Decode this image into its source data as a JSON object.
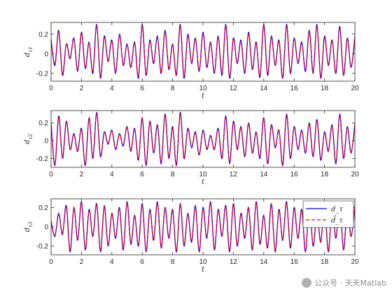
{
  "chart_data": [
    {
      "type": "line",
      "ylabel": "d_{τ1}",
      "xlabel": "t",
      "xlim": [
        0,
        20
      ],
      "ylim": [
        -0.28,
        0.32
      ],
      "xticks": [
        0,
        2,
        4,
        6,
        8,
        10,
        12,
        14,
        16,
        18,
        20
      ],
      "yticks": [
        -0.2,
        0,
        0.2
      ],
      "ytick_labels": [
        "-0.2",
        "0",
        "0.2"
      ],
      "x": [
        0,
        0.25,
        0.5,
        0.75,
        1,
        1.25,
        1.5,
        1.75,
        2,
        2.25,
        2.5,
        2.75,
        3,
        3.25,
        3.5,
        3.75,
        4,
        4.25,
        4.5,
        4.75,
        5,
        5.25,
        5.5,
        5.75,
        6,
        6.25,
        6.5,
        6.75,
        7,
        7.25,
        7.5,
        7.75,
        8,
        8.25,
        8.5,
        8.75,
        9,
        9.25,
        9.5,
        9.75,
        10,
        10.25,
        10.5,
        10.75,
        11,
        11.25,
        11.5,
        11.75,
        12,
        12.25,
        12.5,
        12.75,
        13,
        13.25,
        13.5,
        13.75,
        14,
        14.25,
        14.5,
        14.75,
        15,
        15.25,
        15.5,
        15.75,
        16,
        16.25,
        16.5,
        16.75,
        17,
        17.25,
        17.5,
        17.75,
        18,
        18.25,
        18.5,
        18.75,
        19,
        19.25,
        19.5,
        19.75,
        20
      ],
      "series": [
        {
          "name": "d_τ",
          "color": "#0000ff",
          "style": "solid",
          "values": [
            0.15,
            -0.12,
            0.24,
            -0.22,
            0.1,
            -0.05,
            0.16,
            -0.18,
            0.22,
            -0.15,
            0.12,
            -0.2,
            0.3,
            -0.25,
            0.18,
            -0.08,
            0.14,
            -0.2,
            0.2,
            -0.12,
            0.1,
            -0.14,
            0.12,
            -0.25,
            0.3,
            -0.22,
            0.14,
            -0.1,
            0.18,
            -0.2,
            0.24,
            -0.16,
            0.1,
            -0.22,
            0.3,
            -0.25,
            0.2,
            -0.1,
            0.16,
            -0.18,
            0.22,
            -0.14,
            0.12,
            -0.2,
            0.18,
            -0.22,
            0.3,
            -0.25,
            0.16,
            -0.1,
            0.14,
            -0.2,
            0.22,
            -0.16,
            0.12,
            -0.24,
            0.3,
            -0.22,
            0.18,
            -0.12,
            0.14,
            -0.25,
            0.3,
            -0.2,
            0.16,
            -0.1,
            0.12,
            -0.18,
            0.24,
            -0.2,
            0.3,
            -0.25,
            0.18,
            -0.12,
            0.14,
            -0.2,
            0.28,
            -0.22,
            0.16,
            -0.14,
            0.18
          ]
        },
        {
          "name": "d̂_τ",
          "color": "#ff0000",
          "style": "dashed",
          "values": [
            0.13,
            -0.1,
            0.23,
            -0.21,
            0.1,
            -0.04,
            0.15,
            -0.17,
            0.21,
            -0.14,
            0.11,
            -0.19,
            0.29,
            -0.24,
            0.17,
            -0.07,
            0.13,
            -0.19,
            0.19,
            -0.11,
            0.09,
            -0.13,
            0.11,
            -0.24,
            0.29,
            -0.21,
            0.13,
            -0.09,
            0.17,
            -0.19,
            0.23,
            -0.15,
            0.09,
            -0.21,
            0.29,
            -0.24,
            0.19,
            -0.09,
            0.15,
            -0.17,
            0.21,
            -0.13,
            0.11,
            -0.19,
            0.17,
            -0.21,
            0.29,
            -0.24,
            0.15,
            -0.09,
            0.13,
            -0.19,
            0.21,
            -0.15,
            0.11,
            -0.23,
            0.29,
            -0.21,
            0.17,
            -0.11,
            0.13,
            -0.24,
            0.29,
            -0.19,
            0.15,
            -0.09,
            0.11,
            -0.17,
            0.23,
            -0.19,
            0.29,
            -0.24,
            0.17,
            -0.11,
            0.13,
            -0.19,
            0.27,
            -0.21,
            0.15,
            -0.13,
            0.17
          ]
        }
      ]
    },
    {
      "type": "line",
      "ylabel": "d_{τ2}",
      "xlabel": "t",
      "xlim": [
        0,
        20
      ],
      "ylim": [
        -0.3,
        0.34
      ],
      "xticks": [
        0,
        2,
        4,
        6,
        8,
        10,
        12,
        14,
        16,
        18,
        20
      ],
      "yticks": [
        -0.2,
        0,
        0.2
      ],
      "ytick_labels": [
        "-0.2",
        "0",
        "0.2"
      ],
      "x": [
        0,
        0.25,
        0.5,
        0.75,
        1,
        1.25,
        1.5,
        1.75,
        2,
        2.25,
        2.5,
        2.75,
        3,
        3.25,
        3.5,
        3.75,
        4,
        4.25,
        4.5,
        4.75,
        5,
        5.25,
        5.5,
        5.75,
        6,
        6.25,
        6.5,
        6.75,
        7,
        7.25,
        7.5,
        7.75,
        8,
        8.25,
        8.5,
        8.75,
        9,
        9.25,
        9.5,
        9.75,
        10,
        10.25,
        10.5,
        10.75,
        11,
        11.25,
        11.5,
        11.75,
        12,
        12.25,
        12.5,
        12.75,
        13,
        13.25,
        13.5,
        13.75,
        14,
        14.25,
        14.5,
        14.75,
        15,
        15.25,
        15.5,
        15.75,
        16,
        16.25,
        16.5,
        16.75,
        17,
        17.25,
        17.5,
        17.75,
        18,
        18.25,
        18.5,
        18.75,
        19,
        19.25,
        19.5,
        19.75,
        20
      ],
      "series": [
        {
          "name": "d_τ",
          "color": "#0000ff",
          "style": "solid",
          "values": [
            0.2,
            -0.28,
            0.28,
            -0.2,
            0.22,
            -0.1,
            0.08,
            -0.12,
            0.14,
            -0.28,
            0.26,
            -0.2,
            0.32,
            -0.18,
            0.1,
            -0.04,
            0.12,
            -0.1,
            0.08,
            -0.06,
            0.16,
            -0.12,
            0.14,
            -0.22,
            0.26,
            -0.28,
            0.22,
            -0.14,
            0.18,
            -0.26,
            0.3,
            -0.2,
            0.16,
            -0.28,
            0.32,
            -0.2,
            0.14,
            -0.08,
            0.1,
            -0.16,
            0.12,
            -0.1,
            0.06,
            -0.1,
            0.14,
            -0.2,
            0.28,
            -0.26,
            0.22,
            -0.1,
            0.16,
            -0.18,
            0.2,
            -0.14,
            0.1,
            -0.2,
            0.26,
            -0.26,
            0.18,
            -0.08,
            0.12,
            -0.28,
            0.3,
            -0.2,
            0.16,
            -0.1,
            0.12,
            -0.14,
            0.2,
            -0.18,
            0.24,
            -0.22,
            0.1,
            -0.12,
            0.18,
            -0.26,
            0.3,
            -0.2,
            0.16,
            -0.14,
            0.2
          ]
        },
        {
          "name": "d̂_τ",
          "color": "#ff0000",
          "style": "dashed",
          "values": [
            0.18,
            -0.27,
            0.27,
            -0.19,
            0.21,
            -0.09,
            0.07,
            -0.11,
            0.13,
            -0.27,
            0.25,
            -0.19,
            0.31,
            -0.17,
            0.09,
            -0.03,
            0.11,
            -0.09,
            0.07,
            -0.05,
            0.15,
            -0.11,
            0.13,
            -0.21,
            0.25,
            -0.27,
            0.21,
            -0.13,
            0.17,
            -0.25,
            0.29,
            -0.19,
            0.15,
            -0.27,
            0.31,
            -0.19,
            0.13,
            -0.07,
            0.09,
            -0.15,
            0.11,
            -0.09,
            0.05,
            -0.09,
            0.13,
            -0.19,
            0.27,
            -0.25,
            0.21,
            -0.09,
            0.15,
            -0.17,
            0.19,
            -0.13,
            0.09,
            -0.19,
            0.25,
            -0.25,
            0.17,
            -0.07,
            0.11,
            -0.27,
            0.29,
            -0.19,
            0.15,
            -0.09,
            0.11,
            -0.13,
            0.19,
            -0.17,
            0.23,
            -0.21,
            0.09,
            -0.11,
            0.17,
            -0.25,
            0.29,
            -0.19,
            0.15,
            -0.13,
            0.19
          ]
        }
      ]
    },
    {
      "type": "line",
      "ylabel": "d_{τ3}",
      "xlabel": "t",
      "xlim": [
        0,
        20
      ],
      "ylim": [
        -0.29,
        0.29
      ],
      "xticks": [
        0,
        2,
        4,
        6,
        8,
        10,
        12,
        14,
        16,
        18,
        20
      ],
      "yticks": [
        -0.2,
        0,
        0.2
      ],
      "ytick_labels": [
        "-0.2",
        "0",
        "0.2"
      ],
      "legend": {
        "placement": "top-right",
        "entries": [
          "d_τ",
          "d̂_τ"
        ]
      },
      "x": [
        0,
        0.25,
        0.5,
        0.75,
        1,
        1.25,
        1.5,
        1.75,
        2,
        2.25,
        2.5,
        2.75,
        3,
        3.25,
        3.5,
        3.75,
        4,
        4.25,
        4.5,
        4.75,
        5,
        5.25,
        5.5,
        5.75,
        6,
        6.25,
        6.5,
        6.75,
        7,
        7.25,
        7.5,
        7.75,
        8,
        8.25,
        8.5,
        8.75,
        9,
        9.25,
        9.5,
        9.75,
        10,
        10.25,
        10.5,
        10.75,
        11,
        11.25,
        11.5,
        11.75,
        12,
        12.25,
        12.5,
        12.75,
        13,
        13.25,
        13.5,
        13.75,
        14,
        14.25,
        14.5,
        14.75,
        15,
        15.25,
        15.5,
        15.75,
        16,
        16.25,
        16.5,
        16.75,
        17,
        17.25,
        17.5,
        17.75,
        18,
        18.25,
        18.5,
        18.75,
        19,
        19.25,
        19.5,
        19.75,
        20
      ],
      "series": [
        {
          "name": "d_τ",
          "color": "#0000ff",
          "style": "solid",
          "values": [
            0.06,
            -0.1,
            0.14,
            -0.08,
            0.22,
            -0.26,
            0.2,
            -0.14,
            0.26,
            -0.24,
            0.18,
            -0.1,
            0.24,
            -0.26,
            0.22,
            -0.2,
            0.14,
            -0.12,
            0.2,
            -0.24,
            0.26,
            -0.18,
            0.12,
            -0.2,
            0.24,
            -0.26,
            0.18,
            -0.14,
            0.26,
            -0.22,
            0.2,
            -0.12,
            0.18,
            -0.26,
            0.24,
            -0.2,
            0.14,
            -0.16,
            0.22,
            -0.26,
            0.2,
            -0.12,
            0.26,
            -0.24,
            0.18,
            -0.1,
            0.22,
            -0.26,
            0.24,
            -0.2,
            0.14,
            -0.12,
            0.2,
            -0.24,
            0.26,
            -0.18,
            0.12,
            -0.22,
            0.24,
            -0.26,
            0.18,
            -0.14,
            0.26,
            -0.22,
            0.2,
            -0.12,
            0.18,
            -0.26,
            0.24,
            -0.2,
            0.14,
            -0.16,
            0.22,
            -0.26,
            0.2,
            -0.12,
            0.26,
            -0.24,
            0.18,
            -0.1,
            0.22
          ]
        },
        {
          "name": "d̂_τ",
          "color": "#ff0000",
          "style": "dashed",
          "values": [
            0.04,
            -0.09,
            0.13,
            -0.07,
            0.21,
            -0.25,
            0.19,
            -0.13,
            0.25,
            -0.23,
            0.17,
            -0.09,
            0.23,
            -0.25,
            0.21,
            -0.19,
            0.13,
            -0.11,
            0.19,
            -0.23,
            0.25,
            -0.17,
            0.11,
            -0.19,
            0.23,
            -0.25,
            0.17,
            -0.13,
            0.25,
            -0.21,
            0.19,
            -0.11,
            0.17,
            -0.25,
            0.23,
            -0.19,
            0.13,
            -0.15,
            0.21,
            -0.25,
            0.19,
            -0.11,
            0.25,
            -0.23,
            0.17,
            -0.09,
            0.21,
            -0.25,
            0.23,
            -0.19,
            0.13,
            -0.11,
            0.19,
            -0.23,
            0.25,
            -0.17,
            0.11,
            -0.21,
            0.23,
            -0.25,
            0.17,
            -0.13,
            0.25,
            -0.21,
            0.19,
            -0.11,
            0.17,
            -0.25,
            0.23,
            -0.19,
            0.13,
            -0.15,
            0.21,
            -0.25,
            0.19,
            -0.11,
            0.25,
            -0.23,
            0.17,
            -0.09,
            0.21
          ]
        }
      ]
    }
  ],
  "watermark": {
    "text": "公众号 · 天天Matlab",
    "icon": "wechat-icon"
  }
}
